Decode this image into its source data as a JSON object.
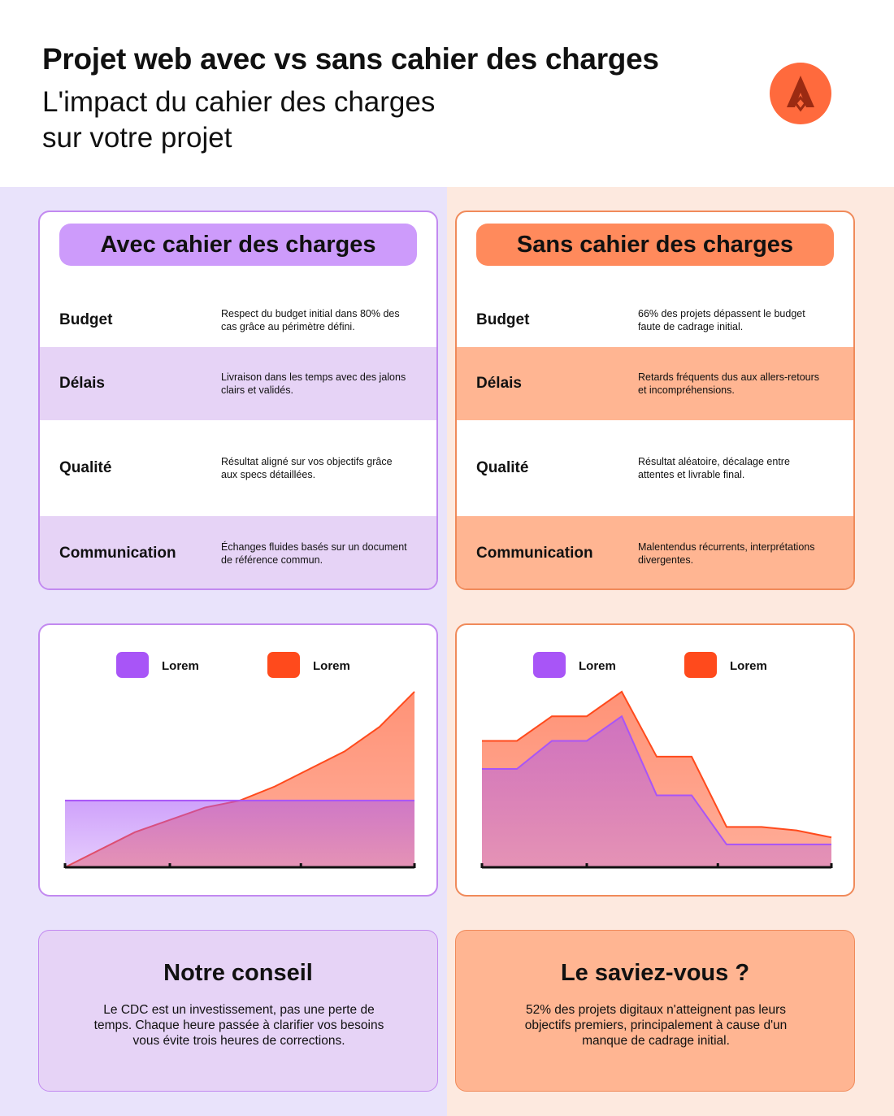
{
  "header": {
    "title": "Projet web avec vs sans cahier des charges",
    "subtitle": "L'impact du cahier des charges\nsur votre projet",
    "logo_icon": "a-logo-icon",
    "logo_color": "#ff6a3d"
  },
  "left": {
    "heading": "Avec cahier des charges",
    "rows": [
      {
        "label": "Budget",
        "text": "Respect du budget initial dans 80% des cas grâce au périmètre défini."
      },
      {
        "label": "Délais",
        "text": "Livraison dans les temps avec des jalons clairs et validés."
      },
      {
        "label": "Qualité",
        "text": "Résultat aligné sur vos objectifs grâce aux specs détaillées."
      },
      {
        "label": "Communication",
        "text": "Échanges fluides basés sur un document de référence commun."
      }
    ],
    "info_title": "Notre conseil",
    "info_text": "Le CDC est un investissement, pas une perte de temps. Chaque heure passée à clarifier vos besoins vous évite trois heures de corrections."
  },
  "right": {
    "heading": "Sans cahier des charges",
    "rows": [
      {
        "label": "Budget",
        "text": "66% des projets dépassent le budget faute de cadrage initial."
      },
      {
        "label": "Délais",
        "text": "Retards fréquents dus aux allers-retours et incompréhensions."
      },
      {
        "label": "Qualité",
        "text": "Résultat aléatoire, décalage entre attentes et livrable final."
      },
      {
        "label": "Communication",
        "text": "Malentendus récurrents, interprétations divergentes."
      }
    ],
    "info_title": "Le saviez-vous ?",
    "info_text": "52% des projets digitaux n'atteignent pas leurs objectifs premiers, principalement à cause d'un manque de cadrage initial."
  },
  "colors": {
    "purple": "#a855f7",
    "orange": "#ff4a1c",
    "purple_fill": "#c9a6fb",
    "orange_fill": "#ff9477"
  },
  "chart_data": [
    {
      "type": "area",
      "grid": false,
      "legend": "top-center",
      "x": [
        0,
        1,
        2,
        3,
        4,
        5,
        6,
        7,
        8,
        9,
        10
      ],
      "ylim": [
        0,
        100
      ],
      "series": [
        {
          "name": "Lorem",
          "color": "#a855f7",
          "values": [
            38,
            38,
            38,
            38,
            38,
            38,
            38,
            38,
            38,
            38,
            38
          ]
        },
        {
          "name": "Lorem",
          "color": "#ff4a1c",
          "values": [
            0,
            10,
            20,
            27,
            34,
            38,
            46,
            56,
            66,
            80,
            100
          ]
        }
      ]
    },
    {
      "type": "area",
      "grid": false,
      "legend": "top-center",
      "x": [
        0,
        1,
        2,
        3,
        4,
        5,
        6,
        7,
        8,
        9,
        10
      ],
      "ylim": [
        0,
        100
      ],
      "series": [
        {
          "name": "Lorem",
          "color": "#a855f7",
          "values": [
            56,
            56,
            72,
            72,
            86,
            41,
            41,
            13,
            13,
            13,
            13
          ]
        },
        {
          "name": "Lorem",
          "color": "#ff4a1c",
          "values": [
            72,
            72,
            86,
            86,
            100,
            63,
            63,
            23,
            23,
            21,
            17
          ]
        }
      ]
    }
  ]
}
